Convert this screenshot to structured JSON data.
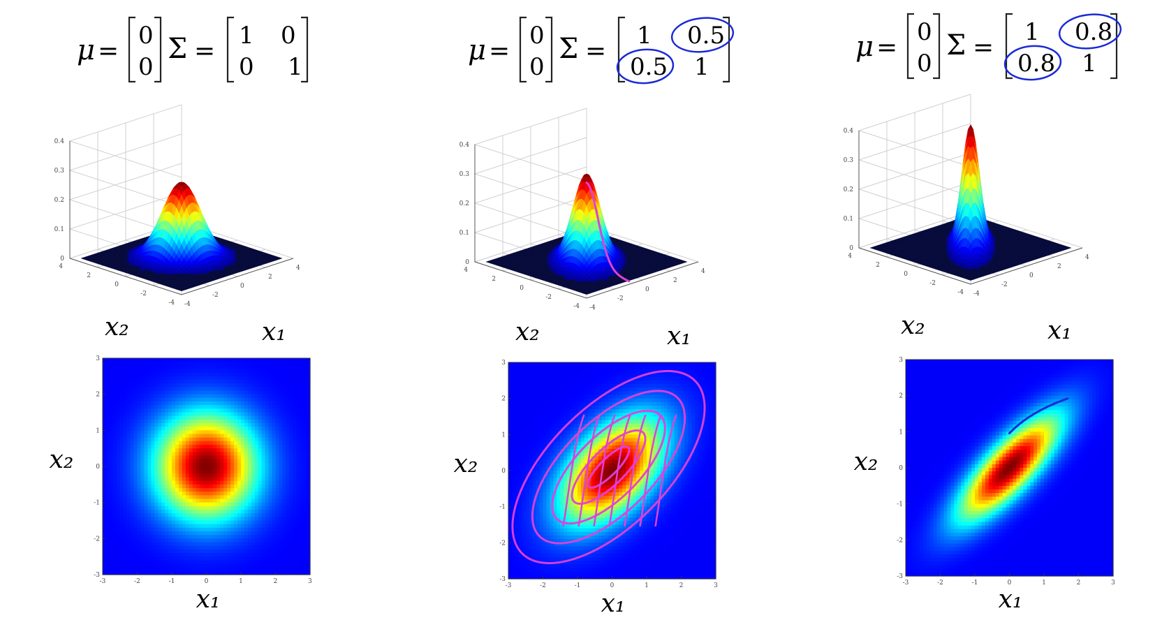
{
  "panels": [
    {
      "id": "panel-1",
      "formula": {
        "mu_symbol": "μ",
        "sigma_symbol": "Σ",
        "equals": "=",
        "mu": [
          "0",
          "0"
        ],
        "sigma": [
          [
            "1",
            "0"
          ],
          [
            "0",
            "1"
          ]
        ]
      },
      "axis_labels": {
        "x1": "x₁",
        "x2": "x₂"
      },
      "surface_ticks": {
        "z": [
          "0.4",
          "0.3",
          "0.2",
          "0.1",
          "0"
        ],
        "x": [
          "-4",
          "-2",
          "0",
          "2",
          "4"
        ],
        "y": [
          "4",
          "2",
          "0",
          "-2",
          "-4"
        ]
      },
      "heatmap_ticks": {
        "x": [
          "-3",
          "-2",
          "-1",
          "0",
          "1",
          "2",
          "3"
        ],
        "y": [
          "3",
          "2",
          "1",
          "0",
          "-1",
          "-2",
          "-3"
        ]
      },
      "annotations": []
    },
    {
      "id": "panel-2",
      "formula": {
        "mu_symbol": "μ",
        "sigma_symbol": "Σ",
        "equals": "=",
        "mu": [
          "0",
          "0"
        ],
        "sigma": [
          [
            "1",
            "0.5"
          ],
          [
            "0.5",
            "1"
          ]
        ]
      },
      "axis_labels": {
        "x1": "x₁",
        "x2": "x₂"
      },
      "surface_ticks": {
        "z": [
          "0.4",
          "0.3",
          "0.2",
          "0.1",
          "0"
        ],
        "x": [
          "-4",
          "-2",
          "0",
          "2",
          "4"
        ],
        "y": [
          "4",
          "2",
          "0",
          "-2",
          "-4"
        ]
      },
      "heatmap_ticks": {
        "x": [
          "-3",
          "-2",
          "-1",
          "0",
          "1",
          "2",
          "3"
        ],
        "y": [
          "3",
          "2",
          "1",
          "0",
          "-1",
          "-2",
          "-3"
        ]
      },
      "annotations": [
        "circle-sigma-12",
        "circle-sigma-21",
        "magenta-ridge-line",
        "magenta-contours"
      ]
    },
    {
      "id": "panel-3",
      "formula": {
        "mu_symbol": "μ",
        "sigma_symbol": "Σ",
        "equals": "=",
        "mu": [
          "0",
          "0"
        ],
        "sigma": [
          [
            "1",
            "0.8"
          ],
          [
            "0.8",
            "1"
          ]
        ]
      },
      "axis_labels": {
        "x1": "x₁",
        "x2": "x₂"
      },
      "surface_ticks": {
        "z": [
          "0.4",
          "0.3",
          "0.2",
          "0.1",
          "0"
        ],
        "x": [
          "-4",
          "-2",
          "0",
          "2",
          "4"
        ],
        "y": [
          "4",
          "2",
          "0",
          "-2",
          "-4"
        ]
      },
      "heatmap_ticks": {
        "x": [
          "-3",
          "-2",
          "-1",
          "0",
          "1",
          "2",
          "3"
        ],
        "y": [
          "3",
          "2",
          "1",
          "0",
          "-1",
          "-2",
          "-3"
        ]
      },
      "annotations": [
        "circle-sigma-12",
        "circle-sigma-21",
        "blue-stroke"
      ]
    }
  ],
  "colors": {
    "ink": "#222222",
    "pen_blue": "#1a2ad6",
    "pen_magenta": "#e040d8",
    "jet_low": "#00008f",
    "jet_high": "#800000"
  }
}
